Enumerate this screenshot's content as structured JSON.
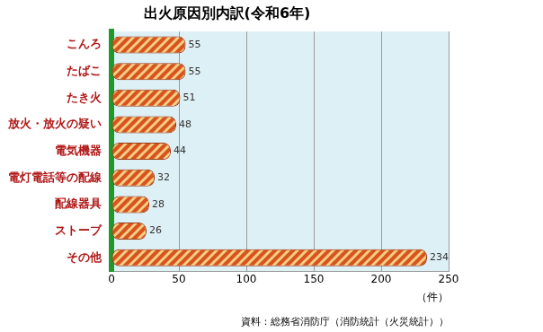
{
  "chart_data": {
    "type": "bar",
    "orientation": "horizontal",
    "title": "出火原因別内訳(令和6年)",
    "categories": [
      "こんろ",
      "たばこ",
      "たき火",
      "放火・放火の疑い",
      "電気機器",
      "電灯電話等の配線",
      "配線器具",
      "ストーブ",
      "その他"
    ],
    "values": [
      55,
      55,
      51,
      48,
      44,
      32,
      28,
      26,
      234
    ],
    "color": "#d9531e",
    "xlabel": "（件）",
    "annotations": [
      "資料：総務省消防庁（消防統計（火災統計））"
    ],
    "xlim": [
      0,
      250
    ],
    "xticks": [
      0,
      50,
      100,
      150,
      200,
      250
    ],
    "grid": true,
    "data_labels": true
  }
}
